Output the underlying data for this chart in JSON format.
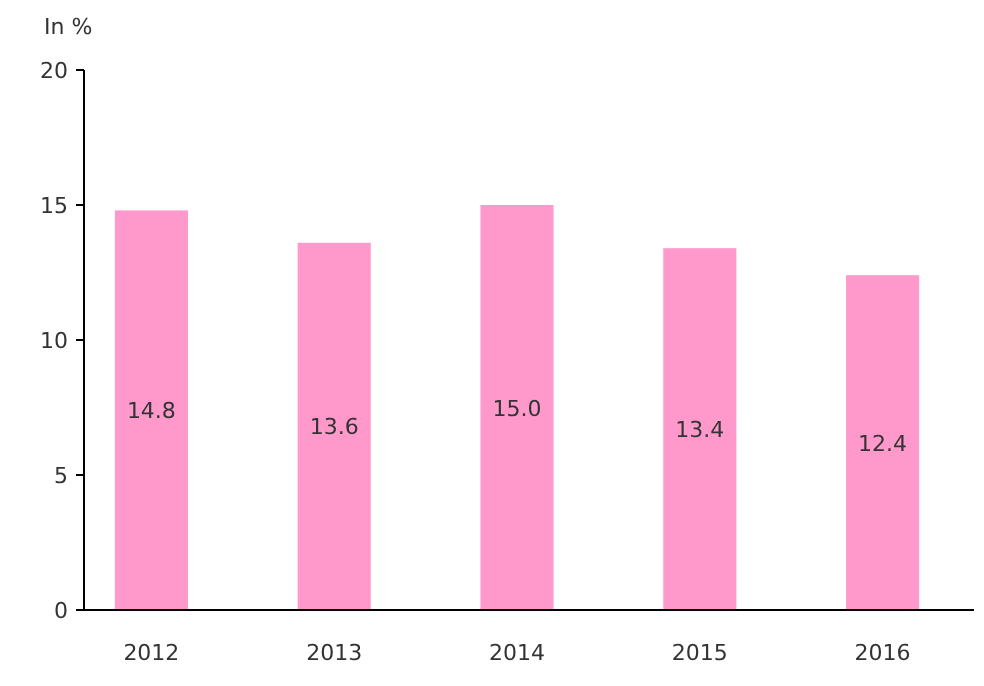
{
  "chart_data": {
    "type": "bar",
    "ylabel": "In %",
    "categories": [
      "2012",
      "2013",
      "2014",
      "2015",
      "2016"
    ],
    "values": [
      14.8,
      13.6,
      15.0,
      13.4,
      12.4
    ],
    "value_labels": [
      "14.8",
      "13.6",
      "15.0",
      "13.4",
      "12.4"
    ],
    "color": "#ff99cc",
    "ylim": [
      0,
      20
    ],
    "yticks": [
      0,
      5,
      10,
      15,
      20
    ],
    "grid": false
  }
}
